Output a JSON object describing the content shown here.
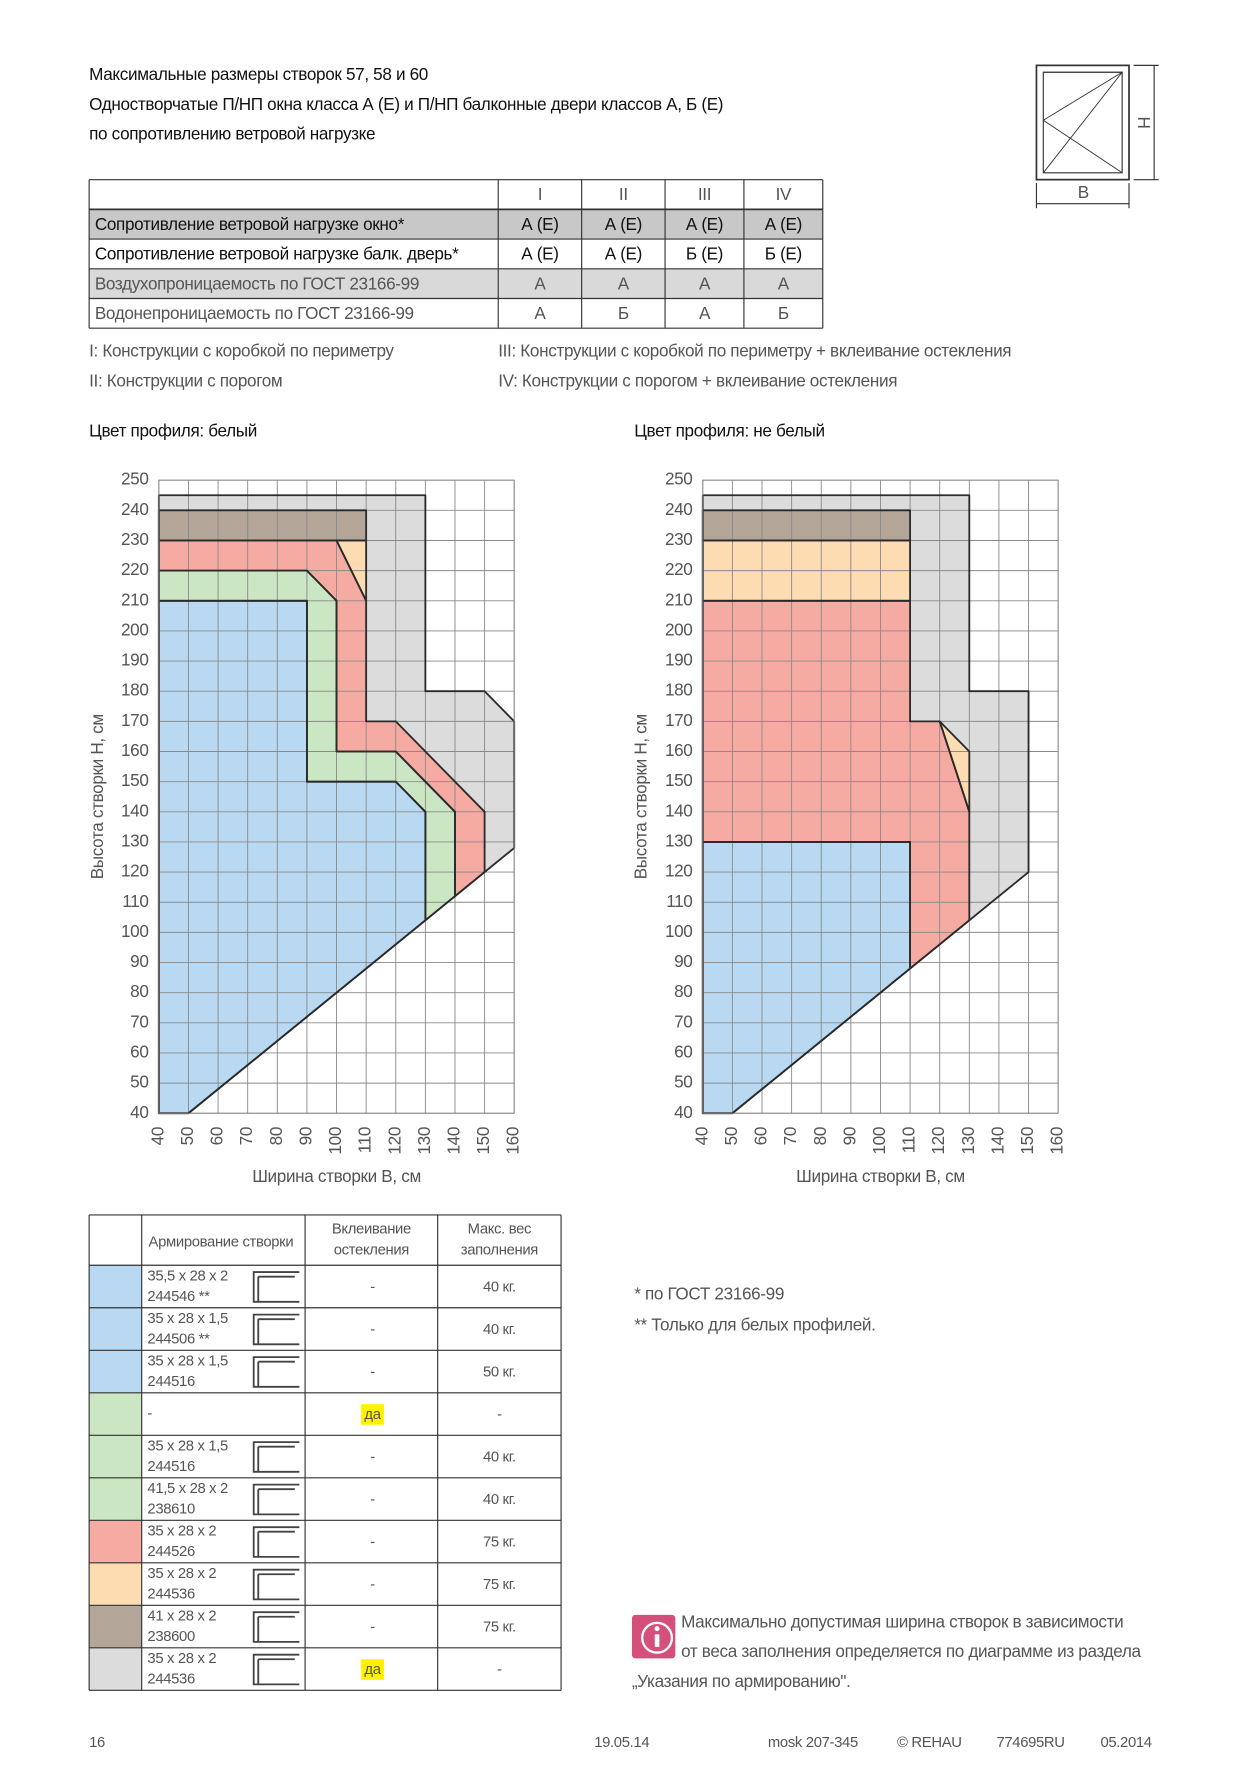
{
  "header": {
    "lines": [
      "Максимальные размеры створок 57, 58 и 60",
      "Одностворчатые П/НП окна класса А (Е) и П/НП балконные двери классов А, Б (Е)",
      "по сопротивлению ветровой нагрузке"
    ]
  },
  "icon": {
    "width_label": "B",
    "height_label": "H"
  },
  "top_table": {
    "header": [
      "I",
      "II",
      "III",
      "IV"
    ],
    "rows": [
      [
        "Сопротивление ветровой нагрузке окно*",
        "А (Е)",
        "А (Е)",
        "А (Е)",
        "А (Е)"
      ],
      [
        "Сопротивление ветровой нагрузке балк. дверь*",
        "А (Е)",
        "А (Е)",
        "Б (Е)",
        "Б (Е)"
      ],
      [
        "Воздухопроницаемость по ГОСТ 23166-99",
        "А",
        "А",
        "А",
        "А"
      ],
      [
        "Водонепроницаемость по ГОСТ 23166-99",
        "А",
        "Б",
        "А",
        "Б"
      ]
    ]
  },
  "notes": [
    "I: Конструкции с коробкой по периметру",
    "II: Конструкции с порогом",
    "III: Конструкции с коробкой по периметру + вклеивание остекления",
    "IV: Конструкции с порогом + вклеивание остекления"
  ],
  "charts": [
    {
      "type": "region",
      "title": "Цвет профиля: белый",
      "xlabel": "Ширина створки B, см",
      "ylabel": "Высота створки H, см",
      "xlim": [
        40,
        160
      ],
      "ylim": [
        40,
        250
      ],
      "xticks": [
        40,
        50,
        60,
        70,
        80,
        90,
        100,
        110,
        120,
        130,
        140,
        150,
        160
      ],
      "yticks": [
        40,
        50,
        60,
        70,
        80,
        90,
        100,
        110,
        120,
        130,
        140,
        150,
        160,
        170,
        180,
        190,
        200,
        210,
        220,
        230,
        240,
        250
      ],
      "regions": [
        {
          "color": "#dcdcdc",
          "x": [
            40,
            50,
            160,
            160,
            150,
            130,
            130,
            40
          ],
          "y": [
            40,
            40,
            128,
            170,
            180,
            180,
            245,
            245
          ]
        },
        {
          "color": "#b3a597",
          "x": [
            40,
            110,
            110,
            40
          ],
          "y": [
            240,
            240,
            230,
            230
          ]
        },
        {
          "color": "#fddcb2",
          "x": [
            100,
            110,
            110
          ],
          "y": [
            230,
            230,
            210
          ]
        },
        {
          "color": "#f6aba2",
          "x": [
            40,
            100,
            110,
            110,
            120,
            150,
            150,
            140,
            140,
            120,
            100,
            100,
            90,
            40
          ],
          "y": [
            230,
            230,
            210,
            170,
            170,
            140,
            120,
            112,
            140,
            160,
            160,
            210,
            220,
            220
          ]
        },
        {
          "color": "#cbe6c2",
          "x": [
            40,
            90,
            100,
            100,
            120,
            140,
            140,
            130,
            130,
            120,
            90,
            90,
            40
          ],
          "y": [
            220,
            220,
            210,
            160,
            160,
            140,
            112,
            104,
            140,
            150,
            150,
            210,
            210
          ]
        },
        {
          "color": "#b9d9f2",
          "x": [
            40,
            50,
            130,
            130,
            120,
            90,
            90,
            40
          ],
          "y": [
            40,
            40,
            104,
            140,
            150,
            150,
            210,
            210
          ]
        }
      ]
    },
    {
      "type": "region",
      "title": "Цвет профиля: не белый",
      "xlabel": "Ширина створки B, см",
      "ylabel": "Высота створки H, см",
      "xlim": [
        40,
        160
      ],
      "ylim": [
        40,
        250
      ],
      "xticks": [
        40,
        50,
        60,
        70,
        80,
        90,
        100,
        110,
        120,
        130,
        140,
        150,
        160
      ],
      "yticks": [
        40,
        50,
        60,
        70,
        80,
        90,
        100,
        110,
        120,
        130,
        140,
        150,
        160,
        170,
        180,
        190,
        200,
        210,
        220,
        230,
        240,
        250
      ],
      "regions": [
        {
          "color": "#dcdcdc",
          "x": [
            40,
            50,
            150,
            150,
            130,
            130,
            40
          ],
          "y": [
            40,
            40,
            120,
            180,
            180,
            245,
            245
          ]
        },
        {
          "color": "#b3a597",
          "x": [
            40,
            110,
            110,
            40
          ],
          "y": [
            240,
            240,
            230,
            230
          ]
        },
        {
          "color": "#fddcb2",
          "x": [
            40,
            110,
            110,
            40
          ],
          "y": [
            230,
            230,
            210,
            210
          ]
        },
        {
          "color": "#fddcb2",
          "x": [
            120,
            130,
            130
          ],
          "y": [
            170,
            160,
            140
          ]
        },
        {
          "color": "#f6aba2",
          "x": [
            40,
            110,
            110,
            130,
            130,
            120,
            110,
            110,
            40
          ],
          "y": [
            130,
            130,
            88,
            104,
            140,
            170,
            170,
            210,
            210
          ]
        },
        {
          "color": "#b9d9f2",
          "x": [
            40,
            50,
            110,
            110,
            40
          ],
          "y": [
            40,
            40,
            88,
            130,
            130
          ]
        }
      ]
    }
  ],
  "reinforcement_table": {
    "header": [
      "Армирование створки",
      [
        "Вклеивание",
        "остекления"
      ],
      [
        "Макс. вес",
        "заполнения"
      ]
    ],
    "rows": [
      {
        "color": "#b9d9f2",
        "profile": "35,5 x 28 x 2",
        "code": "244546 **",
        "glazing": "-",
        "weight": "40 кг."
      },
      {
        "color": "#b9d9f2",
        "profile": "35 x 28 x 1,5",
        "code": "244506 **",
        "glazing": "-",
        "weight": "40 кг."
      },
      {
        "color": "#b9d9f2",
        "profile": "35 x 28 x 1,5",
        "code": "244516",
        "glazing": "-",
        "weight": "50 кг."
      },
      {
        "color": "#cbe6c2",
        "profile": "-",
        "glazing": "да",
        "weight": "-"
      },
      {
        "color": "#cbe6c2",
        "profile": "35 x 28 x 1,5",
        "code": "244516",
        "glazing": "-",
        "weight": "40 кг."
      },
      {
        "color": "#cbe6c2",
        "profile": "41,5 x 28 x 2",
        "code": "238610",
        "glazing": "-",
        "weight": "40 кг."
      },
      {
        "color": "#f6aba2",
        "profile": "35 x 28 x 2",
        "code": "244526",
        "glazing": "-",
        "weight": "75 кг."
      },
      {
        "color": "#fddcb2",
        "profile": "35 x 28 x 2",
        "code": "244536",
        "glazing": "-",
        "weight": "75 кг."
      },
      {
        "color": "#b3a597",
        "profile": "41 x 28 x 2",
        "code": "238600",
        "glazing": "-",
        "weight": "75 кг."
      },
      {
        "color": "#dcdcdc",
        "profile": "35 x 28 x 2",
        "code": "244536",
        "glazing": "да",
        "weight": "-"
      }
    ]
  },
  "footnotes": [
    "*  по ГОСТ 23166-99",
    "**  Только для белых профилей."
  ],
  "info": {
    "lines": [
      "Максимально допустимая ширина створок в зависимости",
      "от веса заполнения определяется по диаграмме из раздела",
      "„Указания по армированию\"."
    ]
  },
  "footer": [
    "16",
    "19.05.14",
    "mosk 207-345",
    "© REHAU",
    "774695RU",
    "05.2014"
  ]
}
